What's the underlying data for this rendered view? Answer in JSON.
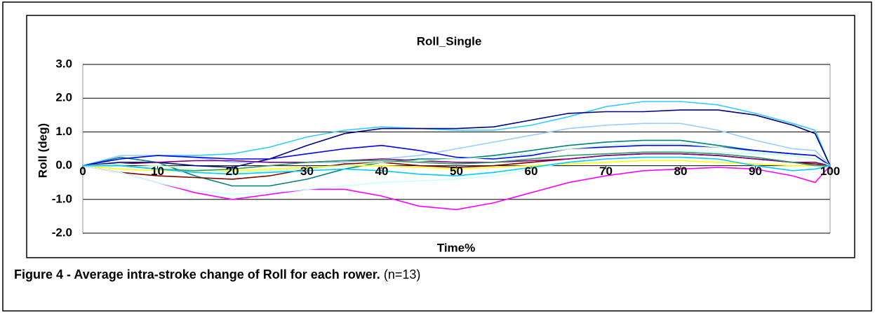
{
  "chart_data": {
    "type": "line",
    "title": "Roll_Single",
    "x_label": "Time%",
    "y_label": "Roll (deg)",
    "x": [
      0,
      5,
      10,
      15,
      20,
      25,
      30,
      35,
      40,
      45,
      50,
      55,
      60,
      65,
      70,
      75,
      80,
      85,
      90,
      95,
      98,
      100
    ],
    "series": [
      {
        "color": "#33ccff",
        "values": [
          0,
          0.2,
          0.3,
          0.3,
          0.35,
          0.55,
          0.85,
          1.05,
          1.15,
          1.1,
          1.05,
          1.05,
          1.2,
          1.45,
          1.75,
          1.9,
          1.9,
          1.8,
          1.55,
          1.25,
          1.05,
          0
        ]
      },
      {
        "color": "#000080",
        "values": [
          0,
          0.1,
          0.1,
          0.0,
          -0.05,
          0.2,
          0.6,
          0.95,
          1.1,
          1.1,
          1.1,
          1.15,
          1.35,
          1.55,
          1.6,
          1.6,
          1.65,
          1.65,
          1.5,
          1.2,
          0.95,
          0
        ]
      },
      {
        "color": "#99ccff",
        "values": [
          0,
          0.3,
          0.3,
          0.25,
          0.1,
          0.1,
          0.1,
          0.1,
          0.2,
          0.3,
          0.5,
          0.7,
          0.9,
          1.1,
          1.2,
          1.25,
          1.25,
          1.05,
          0.75,
          0.5,
          0.45,
          0
        ]
      },
      {
        "color": "#008080",
        "values": [
          0,
          0.25,
          0.1,
          -0.3,
          -0.6,
          -0.6,
          -0.4,
          -0.1,
          0.1,
          0.2,
          0.2,
          0.3,
          0.45,
          0.6,
          0.7,
          0.75,
          0.75,
          0.6,
          0.45,
          0.35,
          0.3,
          0
        ]
      },
      {
        "color": "#0000ff",
        "values": [
          0,
          0.2,
          0.3,
          0.25,
          0.2,
          0.2,
          0.35,
          0.5,
          0.6,
          0.45,
          0.25,
          0.2,
          0.3,
          0.5,
          0.55,
          0.6,
          0.6,
          0.55,
          0.45,
          0.35,
          0.3,
          0
        ]
      },
      {
        "color": "#ff00ff",
        "values": [
          0,
          -0.2,
          -0.5,
          -0.8,
          -1.0,
          -0.85,
          -0.7,
          -0.7,
          -0.9,
          -1.2,
          -1.3,
          -1.1,
          -0.8,
          -0.5,
          -0.3,
          -0.15,
          -0.1,
          -0.05,
          -0.1,
          -0.3,
          -0.5,
          0
        ]
      },
      {
        "color": "#800000",
        "values": [
          0,
          -0.2,
          -0.3,
          -0.35,
          -0.4,
          -0.3,
          -0.1,
          0.05,
          0.1,
          0.0,
          -0.05,
          0.0,
          0.1,
          0.2,
          0.3,
          0.35,
          0.35,
          0.3,
          0.2,
          0.1,
          0.05,
          0
        ]
      },
      {
        "color": "#ffff00",
        "values": [
          0,
          -0.1,
          -0.15,
          -0.15,
          -0.15,
          -0.1,
          -0.05,
          0.0,
          0.0,
          -0.05,
          -0.1,
          -0.05,
          0.0,
          0.05,
          0.1,
          0.15,
          0.15,
          0.1,
          0.05,
          0.0,
          0.0,
          0
        ]
      },
      {
        "color": "#ccffff",
        "values": [
          0,
          -0.2,
          -0.5,
          -0.75,
          -0.85,
          -0.8,
          -0.7,
          -0.6,
          -0.5,
          -0.45,
          -0.4,
          -0.3,
          -0.1,
          0.1,
          0.3,
          0.4,
          0.45,
          0.4,
          0.35,
          0.3,
          0.2,
          0
        ]
      },
      {
        "color": "#800080",
        "values": [
          0,
          0.05,
          0.1,
          0.15,
          0.15,
          0.1,
          0.1,
          0.15,
          0.2,
          0.15,
          0.1,
          0.1,
          0.15,
          0.2,
          0.3,
          0.35,
          0.35,
          0.3,
          0.2,
          0.1,
          0.1,
          0
        ]
      },
      {
        "color": "#ccffcc",
        "values": [
          0,
          0.05,
          0.0,
          -0.1,
          -0.2,
          -0.15,
          -0.1,
          0.0,
          0.1,
          0.15,
          0.2,
          0.25,
          0.35,
          0.5,
          0.6,
          0.65,
          0.65,
          0.55,
          0.4,
          0.3,
          0.2,
          0
        ]
      },
      {
        "color": "#339966",
        "values": [
          0,
          0.0,
          -0.1,
          -0.15,
          -0.1,
          0.0,
          0.1,
          0.15,
          0.15,
          0.1,
          0.05,
          0.1,
          0.2,
          0.3,
          0.35,
          0.4,
          0.4,
          0.35,
          0.25,
          0.1,
          0.0,
          0
        ]
      },
      {
        "color": "#00ccff",
        "values": [
          0,
          0.0,
          -0.1,
          -0.2,
          -0.25,
          -0.2,
          -0.15,
          -0.1,
          -0.15,
          -0.25,
          -0.3,
          -0.2,
          -0.05,
          0.1,
          0.2,
          0.25,
          0.25,
          0.2,
          0.0,
          -0.15,
          -0.1,
          0
        ]
      }
    ],
    "xlim": [
      0,
      100
    ],
    "xticks": [
      0,
      10,
      20,
      30,
      40,
      50,
      60,
      70,
      80,
      90,
      100
    ],
    "ylim": [
      -2,
      3
    ],
    "yticks": [
      {
        "value": -2,
        "label": "-2.0"
      },
      {
        "value": -1,
        "label": "-1.0"
      },
      {
        "value": 0,
        "label": "0.0"
      },
      {
        "value": 1,
        "label": "1.0"
      },
      {
        "value": 2,
        "label": "2.0"
      },
      {
        "value": 3,
        "label": "3.0"
      }
    ],
    "grid": true
  },
  "caption": {
    "text": "Figure 4 - Average intra-stroke change of Roll for each rower.",
    "note": "(n=13)"
  }
}
